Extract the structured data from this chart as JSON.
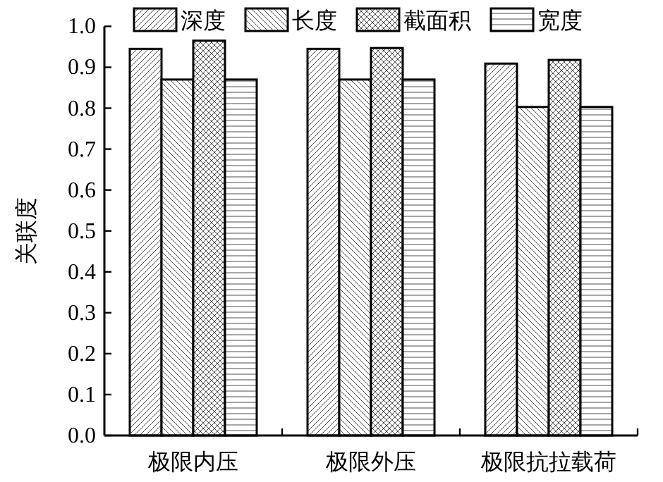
{
  "chart_data": {
    "type": "bar",
    "ylabel": "关联度",
    "categories": [
      "极限内压",
      "极限外压",
      "极限抗拉载荷"
    ],
    "series": [
      {
        "name": "深度",
        "color": "#000000",
        "values": [
          0.945,
          0.945,
          0.909
        ]
      },
      {
        "name": "长度",
        "color": "#000000",
        "values": [
          0.87,
          0.87,
          0.803
        ]
      },
      {
        "name": "截面积",
        "color": "#000000",
        "values": [
          0.965,
          0.947,
          0.918
        ]
      },
      {
        "name": "宽度",
        "color": "#000000",
        "values": [
          0.87,
          0.87,
          0.803
        ]
      }
    ],
    "ylim": [
      0,
      1
    ],
    "yticks": [
      {
        "value": 0,
        "label": "0.0"
      },
      {
        "value": 0.1,
        "label": "0.1"
      },
      {
        "value": 0.2,
        "label": "0.2"
      },
      {
        "value": 0.3,
        "label": "0.3"
      },
      {
        "value": 0.4,
        "label": "0.4"
      },
      {
        "value": 0.5,
        "label": "0.5"
      },
      {
        "value": 0.6,
        "label": "0.6"
      },
      {
        "value": 0.7,
        "label": "0.7"
      },
      {
        "value": 0.8,
        "label": "0.8"
      },
      {
        "value": 0.9,
        "label": "0.9"
      },
      {
        "value": 1,
        "label": "1.0"
      }
    ],
    "legend": "top",
    "grid": false
  }
}
